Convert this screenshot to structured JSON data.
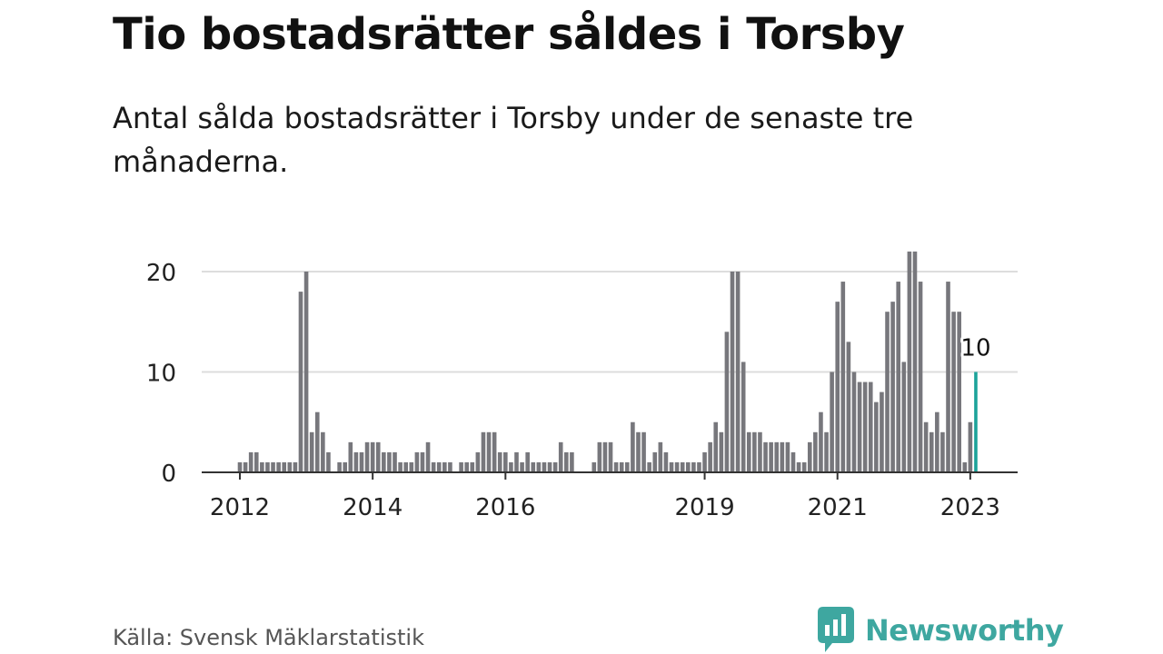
{
  "title": "Tio bostadsrätter såldes i Torsby",
  "subtitle": "Antal sålda bostadsrätter i Torsby under de senaste tre månaderna.",
  "source": "Källa: Svensk Mäklarstatistik",
  "brand": {
    "name": "Newsworthy",
    "icon": "newsworthy-logo-icon",
    "color": "#3ea7a0"
  },
  "colors": {
    "bar": "#77777c",
    "highlight": "#1ca39a",
    "grid": "#dddddd",
    "axis": "#333333"
  },
  "chart_data": {
    "type": "bar",
    "title": "",
    "xlabel": "",
    "ylabel": "",
    "ylim": [
      0,
      20
    ],
    "yticks": [
      0,
      10,
      20
    ],
    "grid": true,
    "x_start": "2011-06",
    "x_ticks": [
      {
        "date": "2012-01",
        "label": "2012"
      },
      {
        "date": "2014-01",
        "label": "2014"
      },
      {
        "date": "2016-01",
        "label": "2016"
      },
      {
        "date": "2019-01",
        "label": "2019"
      },
      {
        "date": "2021-01",
        "label": "2021"
      },
      {
        "date": "2023-01",
        "label": "2023"
      }
    ],
    "values": [
      0,
      0,
      0,
      0,
      0,
      0,
      0,
      1,
      1,
      2,
      2,
      1,
      1,
      1,
      1,
      1,
      1,
      1,
      18,
      20,
      4,
      6,
      4,
      2,
      0,
      1,
      1,
      3,
      2,
      2,
      3,
      3,
      3,
      2,
      2,
      2,
      1,
      1,
      1,
      2,
      2,
      3,
      1,
      1,
      1,
      1,
      0,
      1,
      1,
      1,
      2,
      4,
      4,
      4,
      2,
      2,
      1,
      2,
      1,
      2,
      1,
      1,
      1,
      1,
      1,
      3,
      2,
      2,
      0,
      0,
      0,
      1,
      3,
      3,
      3,
      1,
      1,
      1,
      5,
      4,
      4,
      1,
      2,
      3,
      2,
      1,
      1,
      1,
      1,
      1,
      1,
      2,
      3,
      5,
      4,
      14,
      20,
      20,
      11,
      4,
      4,
      4,
      3,
      3,
      3,
      3,
      3,
      2,
      1,
      1,
      3,
      4,
      6,
      4,
      10,
      17,
      19,
      13,
      10,
      9,
      9,
      9,
      7,
      8,
      16,
      17,
      19,
      11,
      22,
      22,
      19,
      5,
      4,
      6,
      4,
      19,
      16,
      16,
      1,
      5,
      10
    ],
    "highlight": {
      "date": "2023-02",
      "value": 10,
      "label": "10"
    }
  }
}
